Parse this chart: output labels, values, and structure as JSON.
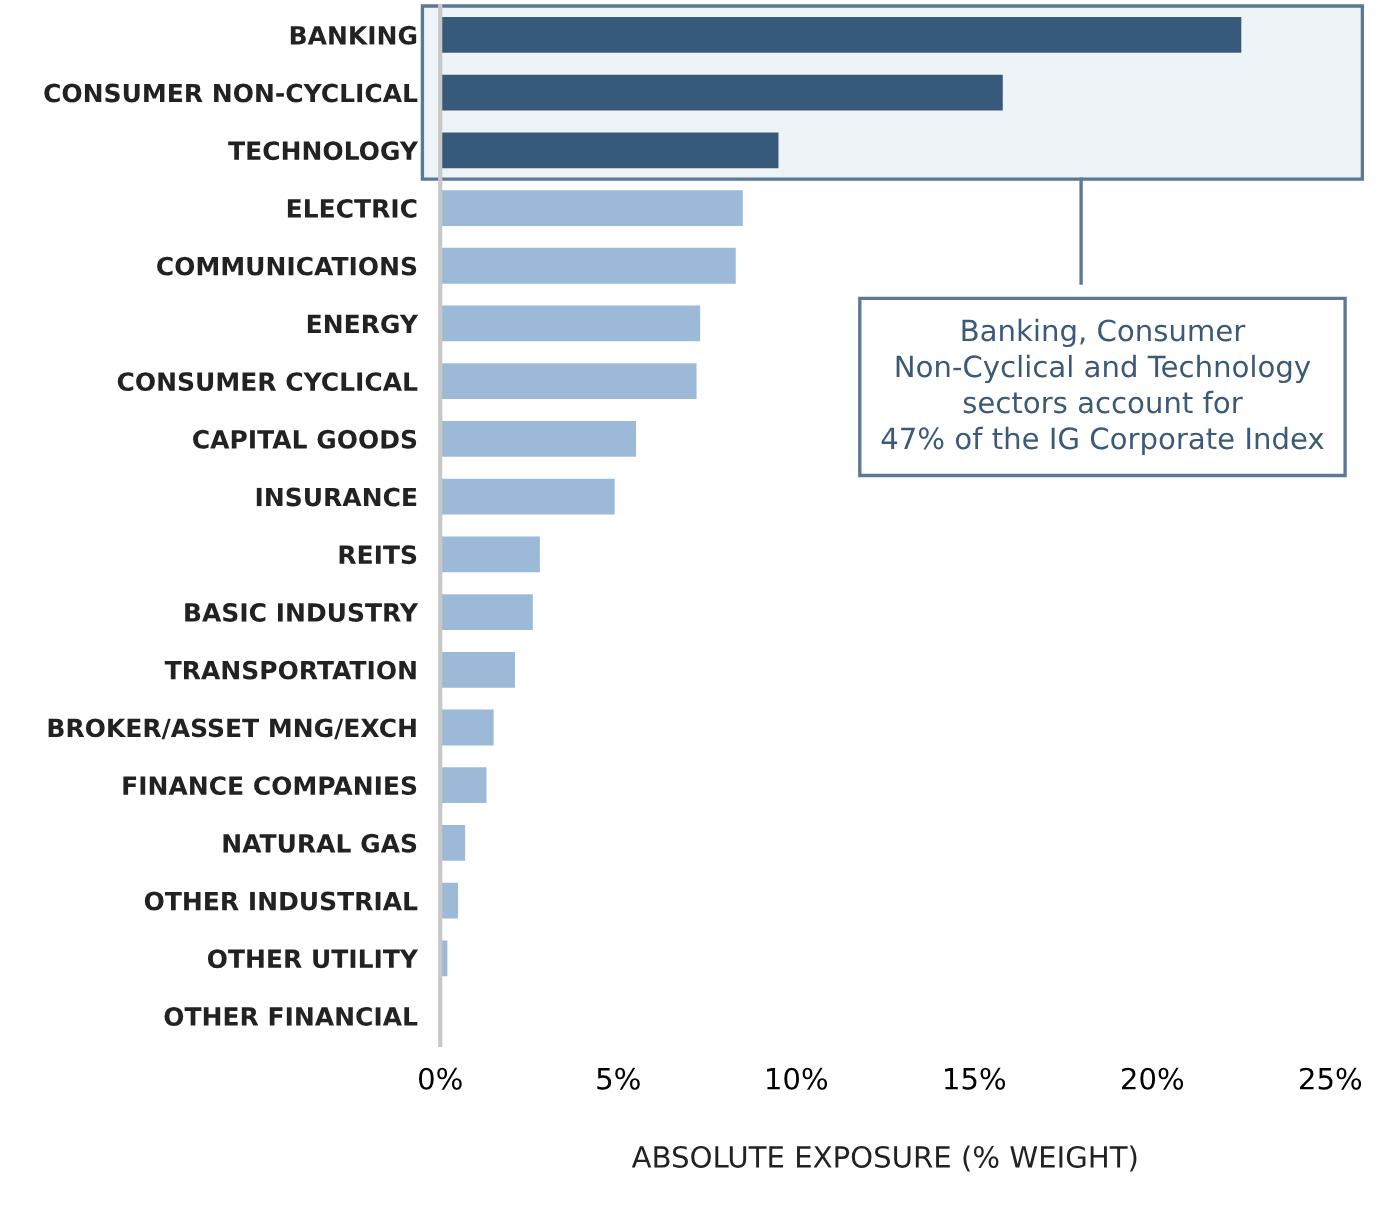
{
  "chart_data": {
    "type": "bar",
    "orientation": "horizontal",
    "categories": [
      "BANKING",
      "CONSUMER NON-CYCLICAL",
      "TECHNOLOGY",
      "ELECTRIC",
      "COMMUNICATIONS",
      "ENERGY",
      "CONSUMER CYCLICAL",
      "CAPITAL GOODS",
      "INSURANCE",
      "REITS",
      "BASIC INDUSTRY",
      "TRANSPORTATION",
      "BROKER/ASSET MNG/EXCH",
      "FINANCE COMPANIES",
      "NATURAL GAS",
      "OTHER INDUSTRIAL",
      "OTHER UTILITY",
      "OTHER FINANCIAL"
    ],
    "values": [
      22.5,
      15.8,
      9.5,
      8.5,
      8.3,
      7.3,
      7.2,
      5.5,
      4.9,
      2.8,
      2.6,
      2.1,
      1.5,
      1.3,
      0.7,
      0.5,
      0.2,
      0.05
    ],
    "colors": [
      "#375a7a",
      "#375a7a",
      "#375a7a",
      "#9cbad7",
      "#9cbad7",
      "#9cbad7",
      "#9cbad7",
      "#9cbad7",
      "#9cbad7",
      "#9cbad7",
      "#9cbad7",
      "#9cbad7",
      "#9cbad7",
      "#9cbad7",
      "#9cbad7",
      "#9cbad7",
      "#9cbad7",
      "#9cbad7"
    ],
    "xlabel": "ABSOLUTE EXPOSURE (% WEIGHT)",
    "xlim": [
      0,
      25
    ],
    "xticks": [
      {
        "value": 0,
        "label": "0%"
      },
      {
        "value": 5,
        "label": "5%"
      },
      {
        "value": 10,
        "label": "10%"
      },
      {
        "value": 15,
        "label": "15%"
      },
      {
        "value": 20,
        "label": "20%"
      },
      {
        "value": 25,
        "label": "25%"
      }
    ],
    "annotations": [
      "Banking, Consumer\nNon-Cyclical and Technology\nsectors account for\n47% of the IG Corporate Index"
    ],
    "grid": false
  }
}
